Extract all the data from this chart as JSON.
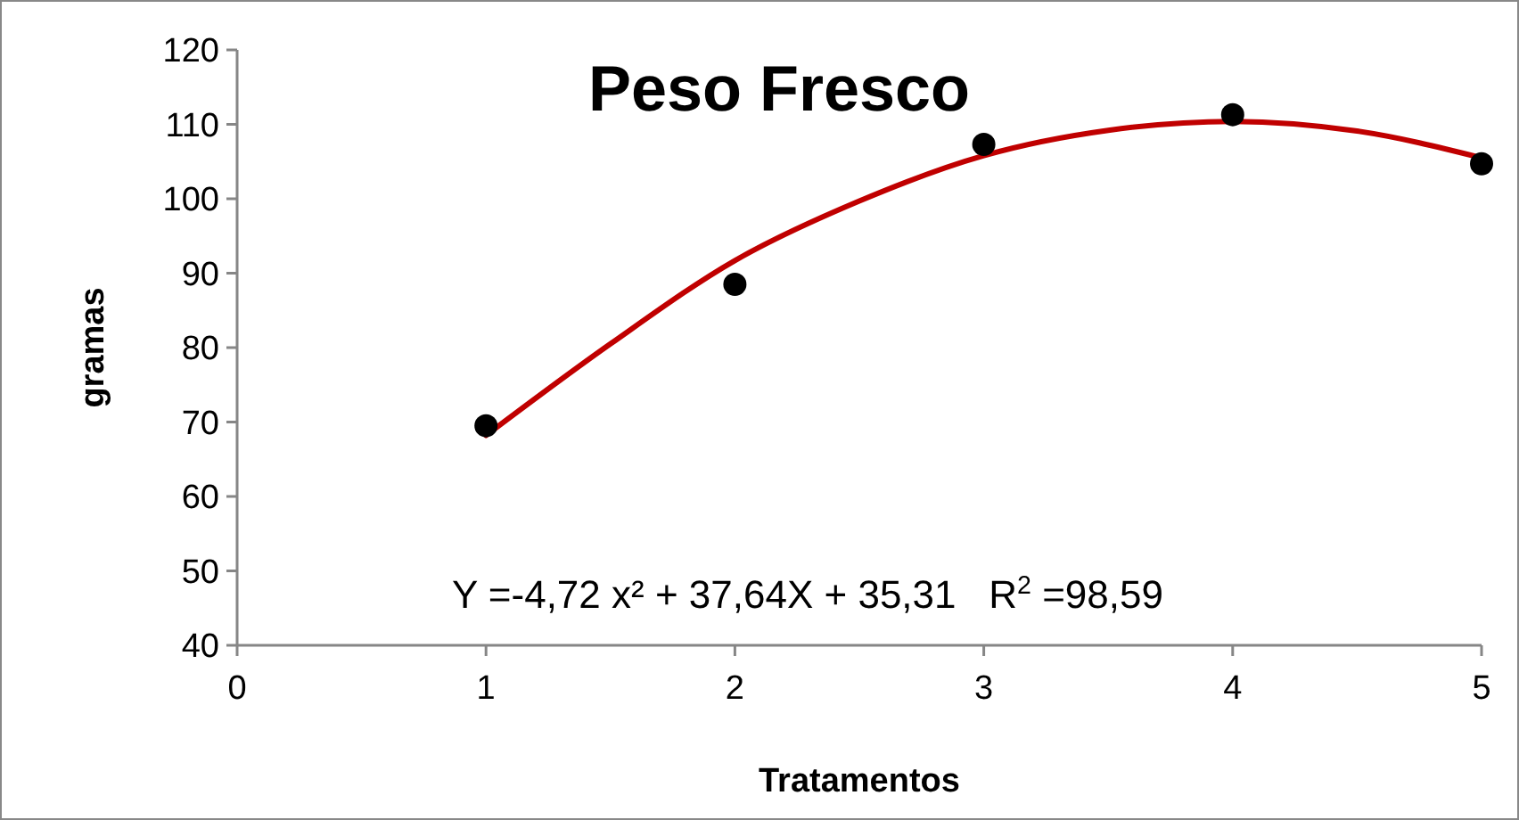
{
  "chart_data": {
    "type": "scatter",
    "title": "Peso Fresco",
    "xlabel": "Tratamentos",
    "ylabel": "gramas",
    "xlim": [
      0,
      5
    ],
    "xticks": [
      0,
      1,
      2,
      3,
      4,
      5
    ],
    "ylim": [
      40,
      120
    ],
    "yticks": [
      40,
      50,
      60,
      70,
      80,
      90,
      100,
      110,
      120
    ],
    "grid": false,
    "annotations": [
      "Y =-4,72 x² + 37,64X + 35,31   R$^{2}$ =98,59"
    ],
    "series": [
      {
        "color": "#000000",
        "marker": "circle",
        "x": [
          1,
          2,
          3,
          4,
          5
        ],
        "values": [
          69.5,
          88.5,
          107.3,
          111.3,
          104.7
        ]
      },
      {
        "type": "line",
        "color": "#c00000",
        "marker": "none",
        "line_style": "solid",
        "x": [
          1,
          1.5,
          2,
          2.5,
          3,
          3.5,
          4,
          4.5,
          5
        ],
        "values": [
          68.2,
          80.5,
          91.7,
          99.7,
          105.8,
          109.2,
          110.4,
          109.1,
          105.5
        ]
      }
    ]
  }
}
